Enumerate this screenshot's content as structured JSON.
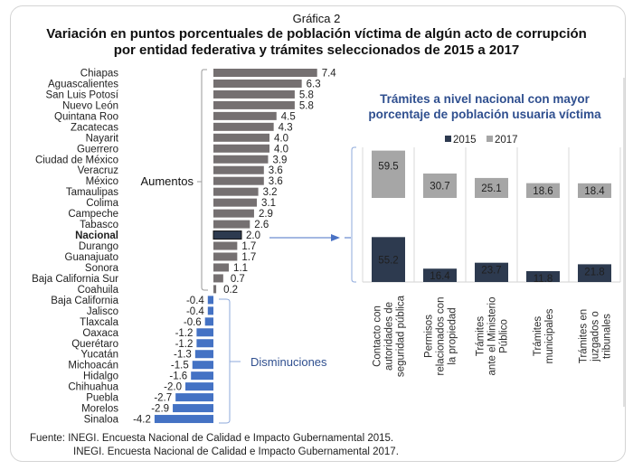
{
  "header": {
    "subtitle": "Gráfica 2",
    "title_line1": "Variación en puntos porcentuales de población víctima de algún acto de corrupción",
    "title_line2": "por entidad federativa y trámites seleccionados de 2015 a 2017"
  },
  "colors": {
    "increase_bar": "#757071",
    "decrease_bar": "#4472c4",
    "nacional_bar": "#2d3a4f",
    "bar_2015": "#2d3a4f",
    "bar_2017": "#a6a6a6",
    "accent_blue": "#2f4f8f",
    "bracket": "#8ea9db"
  },
  "chart_data": [
    {
      "type": "bar",
      "orientation": "horizontal",
      "title": "Variación en puntos porcentuales de población víctima de algún acto de corrupción por entidad federativa",
      "categories": [
        "Chiapas",
        "Aguascalientes",
        "San Luis Potosí",
        "Nuevo León",
        "Quintana Roo",
        "Zacatecas",
        "Nayarit",
        "Guerrero",
        "Ciudad de México",
        "Veracruz",
        "México",
        "Tamaulipas",
        "Colima",
        "Campeche",
        "Tabasco",
        "Nacional",
        "Durango",
        "Guanajuato",
        "Sonora",
        "Baja California Sur",
        "Coahuila",
        "Baja California",
        "Jalisco",
        "Tlaxcala",
        "Oaxaca",
        "Querétaro",
        "Yucatán",
        "Michoacán",
        "Hidalgo",
        "Chihuahua",
        "Puebla",
        "Morelos",
        "Sinaloa"
      ],
      "values": [
        7.4,
        6.3,
        5.8,
        5.8,
        4.5,
        4.3,
        4.0,
        4.0,
        3.9,
        3.6,
        3.6,
        3.2,
        3.1,
        2.9,
        2.6,
        2.0,
        1.7,
        1.7,
        1.1,
        0.7,
        0.2,
        -0.4,
        -0.4,
        -0.6,
        -1.2,
        -1.2,
        -1.3,
        -1.5,
        -1.6,
        -2.0,
        -2.7,
        -2.9,
        -4.2
      ],
      "value_labels": [
        "7.4",
        "6.3",
        "5.8",
        "5.8",
        "4.5",
        "4.3",
        "4.0",
        "4.0",
        "3.9",
        "3.6",
        "3.6",
        "3.2",
        "3.1",
        "2.9",
        "2.6",
        "2.0",
        "1.7",
        "1.7",
        "1.1",
        "0.7",
        "0.2",
        "-0.4",
        "-0.4",
        "-0.6",
        "-1.2",
        "-1.2",
        "-1.3",
        "-1.5",
        "-1.6",
        "-2.0",
        "-2.7",
        "-2.9",
        "-4.2"
      ],
      "highlight": "Nacional",
      "annotations": {
        "increases": "Aumentos",
        "decreases": "Disminuciones"
      },
      "xlim": [
        -4.2,
        7.4
      ]
    },
    {
      "type": "bar",
      "title_line1": "Trámites a nivel nacional con mayor",
      "title_line2": "porcentaje de población usuaria víctima",
      "legend": [
        "2015",
        "2017"
      ],
      "legend_position": "top",
      "categories": [
        [
          "Contacto con",
          "autoridades de",
          "seguridad pública"
        ],
        [
          "Permisos",
          "relacionados con",
          "la propiedad"
        ],
        [
          "Trámites",
          "ante el Ministerio",
          "Público"
        ],
        [
          "Trámites",
          "municipales"
        ],
        [
          "Trámites en",
          "juzgados o",
          "tribunales"
        ]
      ],
      "series": [
        {
          "name": "2015",
          "values": [
            55.2,
            16.4,
            23.7,
            11.8,
            21.8
          ],
          "labels": [
            "55.2",
            "16.4",
            "23.7",
            "11.8",
            "21.8"
          ]
        },
        {
          "name": "2017",
          "values": [
            59.5,
            30.7,
            25.1,
            18.6,
            18.4
          ],
          "labels": [
            "59.5",
            "30.7",
            "25.1",
            "18.6",
            "18.4"
          ]
        }
      ]
    }
  ],
  "source": {
    "line1": "Fuente: INEGI. Encuesta Nacional de Calidad e Impacto Gubernamental 2015.",
    "line2": "INEGI. Encuesta Nacional de Calidad e Impacto Gubernamental 2017."
  }
}
